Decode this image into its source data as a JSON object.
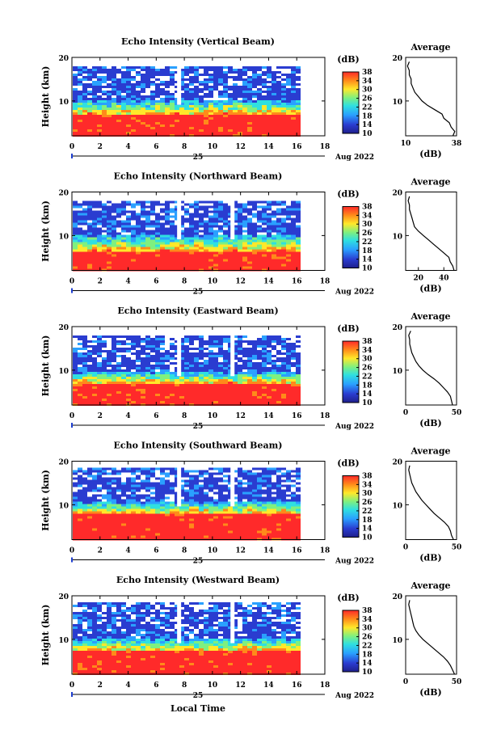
{
  "figure": {
    "x_axis_title": "Local Time",
    "date_label": "Aug 2022",
    "day_label": "25",
    "colorbar_unit": "(dB)",
    "avg_title": "Average",
    "avg_unit": "(dB)",
    "y_axis_title": "Height (km)"
  },
  "chart_data": [
    {
      "type": "heatmap",
      "title": "Echo Intensity (Vertical Beam)",
      "xlabel": "",
      "ylabel": "Height (km)",
      "xlim": [
        0,
        18
      ],
      "ylim": [
        2,
        20
      ],
      "x_ticks": [
        "0",
        "2",
        "4",
        "6",
        "8",
        "10",
        "12",
        "14",
        "16",
        "18"
      ],
      "y_ticks": [
        "10",
        "20"
      ],
      "colorbar": {
        "label": "(dB)",
        "range": [
          10,
          38
        ],
        "ticks": [
          "10",
          "14",
          "18",
          "22",
          "26",
          "30",
          "34",
          "38"
        ]
      },
      "data_extent_hours": [
        0,
        16
      ],
      "gaps_at_hours": [
        7.6
      ],
      "layer_heights_km": {
        "strong_top": 7.0,
        "transition_top": 10.5,
        "data_top": 18.5
      },
      "average_profile": {
        "xlim": [
          10,
          38
        ],
        "x_ticks": [
          "10",
          "38"
        ],
        "ylim": [
          2,
          20
        ],
        "y_ticks": [
          "10",
          "20"
        ],
        "heights_km": [
          2,
          3,
          4,
          5,
          6,
          7,
          8,
          9,
          10,
          11,
          12,
          13,
          14,
          15,
          16,
          17,
          18,
          19
        ],
        "values_db": [
          36,
          37,
          35,
          34,
          31,
          30,
          26,
          22,
          19,
          17,
          15,
          14,
          13,
          13,
          12,
          12,
          11,
          12
        ]
      }
    },
    {
      "type": "heatmap",
      "title": "Echo Intensity (Northward Beam)",
      "xlabel": "",
      "ylabel": "Height (km)",
      "xlim": [
        0,
        18
      ],
      "ylim": [
        2,
        20
      ],
      "x_ticks": [
        "0",
        "2",
        "4",
        "6",
        "8",
        "10",
        "12",
        "14",
        "16",
        "18"
      ],
      "y_ticks": [
        "10",
        "20"
      ],
      "colorbar": {
        "label": "(dB)",
        "range": [
          10,
          38
        ],
        "ticks": [
          "10",
          "14",
          "18",
          "22",
          "26",
          "30",
          "34",
          "38"
        ]
      },
      "data_extent_hours": [
        0,
        16
      ],
      "gaps_at_hours": [
        7.6,
        11.4
      ],
      "layer_heights_km": {
        "strong_top": 6.5,
        "transition_top": 10.5,
        "data_top": 18.0
      },
      "average_profile": {
        "xlim": [
          10,
          50
        ],
        "x_ticks": [
          "20",
          "40"
        ],
        "ylim": [
          2,
          20
        ],
        "y_ticks": [
          "10",
          "20"
        ],
        "heights_km": [
          2,
          3,
          4,
          5,
          6,
          7,
          8,
          9,
          10,
          11,
          12,
          13,
          14,
          15,
          16,
          17,
          18,
          19
        ],
        "values_db": [
          48,
          47,
          45,
          44,
          40,
          36,
          32,
          28,
          24,
          20,
          17,
          16,
          15,
          14,
          13,
          13,
          12,
          13
        ]
      }
    },
    {
      "type": "heatmap",
      "title": "Echo Intensity (Eastward Beam)",
      "xlabel": "",
      "ylabel": "Height (km)",
      "xlim": [
        0,
        18
      ],
      "ylim": [
        2,
        20
      ],
      "x_ticks": [
        "0",
        "2",
        "4",
        "6",
        "8",
        "10",
        "12",
        "14",
        "16",
        "18"
      ],
      "y_ticks": [
        "10",
        "20"
      ],
      "colorbar": {
        "label": "(dB)",
        "range": [
          10,
          38
        ],
        "ticks": [
          "10",
          "14",
          "18",
          "22",
          "26",
          "30",
          "34",
          "38"
        ]
      },
      "data_extent_hours": [
        0,
        16
      ],
      "gaps_at_hours": [
        7.6,
        11.4
      ],
      "layer_heights_km": {
        "strong_top": 7.0,
        "transition_top": 10.0,
        "data_top": 18.5
      },
      "average_profile": {
        "xlim": [
          0,
          50
        ],
        "x_ticks": [
          "0",
          "50"
        ],
        "ylim": [
          2,
          20
        ],
        "y_ticks": [
          "10",
          "20"
        ],
        "heights_km": [
          2,
          3,
          4,
          5,
          6,
          7,
          8,
          9,
          10,
          11,
          12,
          13,
          14,
          15,
          16,
          17,
          18,
          19
        ],
        "values_db": [
          46,
          45,
          44,
          41,
          37,
          33,
          28,
          22,
          17,
          13,
          10,
          8,
          6,
          5,
          4,
          4,
          3,
          5
        ]
      }
    },
    {
      "type": "heatmap",
      "title": "Echo Intensity (Southward Beam)",
      "xlabel": "",
      "ylabel": "Height (km)",
      "xlim": [
        0,
        18
      ],
      "ylim": [
        2,
        20
      ],
      "x_ticks": [
        "0",
        "2",
        "4",
        "6",
        "8",
        "10",
        "12",
        "14",
        "16",
        "18"
      ],
      "y_ticks": [
        "10",
        "20"
      ],
      "colorbar": {
        "label": "(dB)",
        "range": [
          10,
          38
        ],
        "ticks": [
          "10",
          "14",
          "18",
          "22",
          "26",
          "30",
          "34",
          "38"
        ]
      },
      "data_extent_hours": [
        0,
        16
      ],
      "gaps_at_hours": [
        7.6,
        11.4
      ],
      "layer_heights_km": {
        "strong_top": 8.0,
        "transition_top": 11.0,
        "data_top": 19.0
      },
      "average_profile": {
        "xlim": [
          0,
          50
        ],
        "x_ticks": [
          "0",
          "50"
        ],
        "ylim": [
          2,
          20
        ],
        "y_ticks": [
          "10",
          "20"
        ],
        "heights_km": [
          2,
          3,
          4,
          5,
          6,
          7,
          8,
          9,
          10,
          11,
          12,
          13,
          14,
          15,
          16,
          17,
          18,
          19
        ],
        "values_db": [
          47,
          45,
          44,
          42,
          38,
          33,
          28,
          24,
          20,
          16,
          13,
          10,
          8,
          6,
          5,
          4,
          3,
          4
        ]
      }
    },
    {
      "type": "heatmap",
      "title": "Echo Intensity (Westward Beam)",
      "xlabel": "Local Time",
      "ylabel": "Height (km)",
      "xlim": [
        0,
        18
      ],
      "ylim": [
        2,
        20
      ],
      "x_ticks": [
        "0",
        "2",
        "4",
        "6",
        "8",
        "10",
        "12",
        "14",
        "16",
        "18"
      ],
      "y_ticks": [
        "10",
        "20"
      ],
      "colorbar": {
        "label": "(dB)",
        "range": [
          10,
          38
        ],
        "ticks": [
          "10",
          "14",
          "18",
          "22",
          "26",
          "30",
          "34",
          "38"
        ]
      },
      "data_extent_hours": [
        0,
        16
      ],
      "gaps_at_hours": [
        7.6,
        11.4
      ],
      "layer_heights_km": {
        "strong_top": 7.5,
        "transition_top": 10.5,
        "data_top": 19.0
      },
      "average_profile": {
        "xlim": [
          0,
          50
        ],
        "x_ticks": [
          "0",
          "50"
        ],
        "ylim": [
          2,
          20
        ],
        "y_ticks": [
          "10",
          "20"
        ],
        "heights_km": [
          2,
          3,
          4,
          5,
          6,
          7,
          8,
          9,
          10,
          11,
          12,
          13,
          14,
          15,
          16,
          17,
          18,
          19
        ],
        "values_db": [
          48,
          46,
          44,
          41,
          37,
          32,
          27,
          22,
          17,
          13,
          10,
          8,
          7,
          6,
          5,
          4,
          3,
          4
        ]
      }
    }
  ]
}
